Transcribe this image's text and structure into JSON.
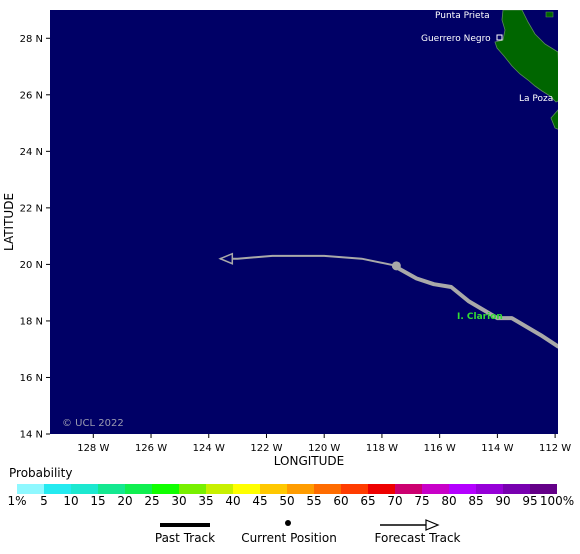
{
  "axes": {
    "y_title": "LATITUDE",
    "x_title": "LONGITUDE",
    "lat_ticks": [
      "14 N",
      "16 N",
      "18 N",
      "20 N",
      "22 N",
      "24 N",
      "26 N",
      "28 N"
    ],
    "lon_ticks": [
      "128 W",
      "126 W",
      "124 W",
      "122 W",
      "120 W",
      "118 W",
      "116 W",
      "114 W",
      "112 W"
    ]
  },
  "places": {
    "punta_prieta": "Punta Prieta",
    "guerrero_negro": "Guerrero Negro",
    "la_poza": "La Poza",
    "clarion": "I. Clarion"
  },
  "copyright": "© UCL 2022",
  "legend": {
    "title": "Probability",
    "labels": [
      "1%",
      "5",
      "10",
      "15",
      "20",
      "25",
      "30",
      "35",
      "40",
      "45",
      "50",
      "55",
      "60",
      "65",
      "70",
      "75",
      "80",
      "85",
      "90",
      "95",
      "100%"
    ],
    "colors": [
      "#8ff8ff",
      "#24eaf0",
      "#1ce8d0",
      "#14e890",
      "#10ef50",
      "#10ff00",
      "#78f000",
      "#c8f000",
      "#ffff00",
      "#ffc800",
      "#ff9c00",
      "#ff6c00",
      "#ff3c00",
      "#ee0000",
      "#cc0070",
      "#c800c8",
      "#b400ff",
      "#9600d8",
      "#7800b0",
      "#640088"
    ]
  },
  "key": {
    "past": "Past Track",
    "current": "Current Position",
    "forecast": "Forecast Track"
  },
  "colors": {
    "ocean": "#000066",
    "land": "#006600",
    "track": "#a9a9a9"
  },
  "chart_data": {
    "type": "map",
    "xlim": [
      -129.5,
      -111.9
    ],
    "ylim": [
      14,
      29
    ],
    "past_track": [
      [
        -111.9,
        17.1
      ],
      [
        -112.5,
        17.5
      ],
      [
        -113.5,
        18.1
      ],
      [
        -114.0,
        18.1
      ],
      [
        -115.0,
        18.7
      ],
      [
        -115.6,
        19.2
      ],
      [
        -116.2,
        19.3
      ],
      [
        -116.8,
        19.5
      ],
      [
        -117.5,
        19.9
      ]
    ],
    "current_position": [
      -117.5,
      19.95
    ],
    "forecast_track": [
      [
        -117.5,
        19.95
      ],
      [
        -118.7,
        20.2
      ],
      [
        -120.0,
        20.3
      ],
      [
        -121.8,
        20.3
      ],
      [
        -123.0,
        20.2
      ],
      [
        -123.6,
        20.2
      ]
    ]
  }
}
